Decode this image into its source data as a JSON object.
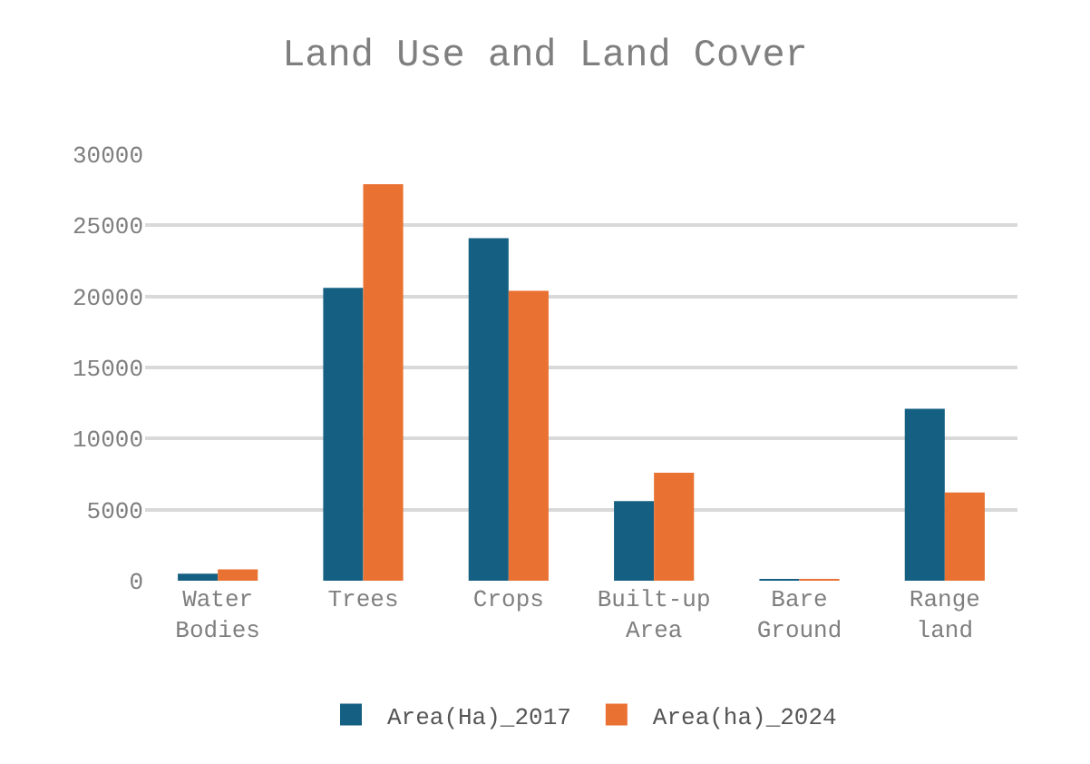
{
  "chart_data": {
    "type": "bar",
    "title": "Land Use and Land Cover",
    "categories": [
      "Water Bodies",
      "Trees",
      "Crops",
      "Built-up Area",
      "Bare Ground",
      "Range land"
    ],
    "series": [
      {
        "name": "Area(Ha)_2017",
        "color": "#156082",
        "values": [
          500,
          20600,
          24100,
          5600,
          100,
          12100
        ]
      },
      {
        "name": "Area(ha)_2024",
        "color": "#e97132",
        "values": [
          800,
          27900,
          20400,
          7600,
          100,
          6200
        ]
      }
    ],
    "ylim": [
      0,
      30000
    ],
    "yticks": [
      0,
      5000,
      10000,
      15000,
      20000,
      25000,
      30000
    ],
    "grid": "y",
    "legend": "bottom"
  }
}
